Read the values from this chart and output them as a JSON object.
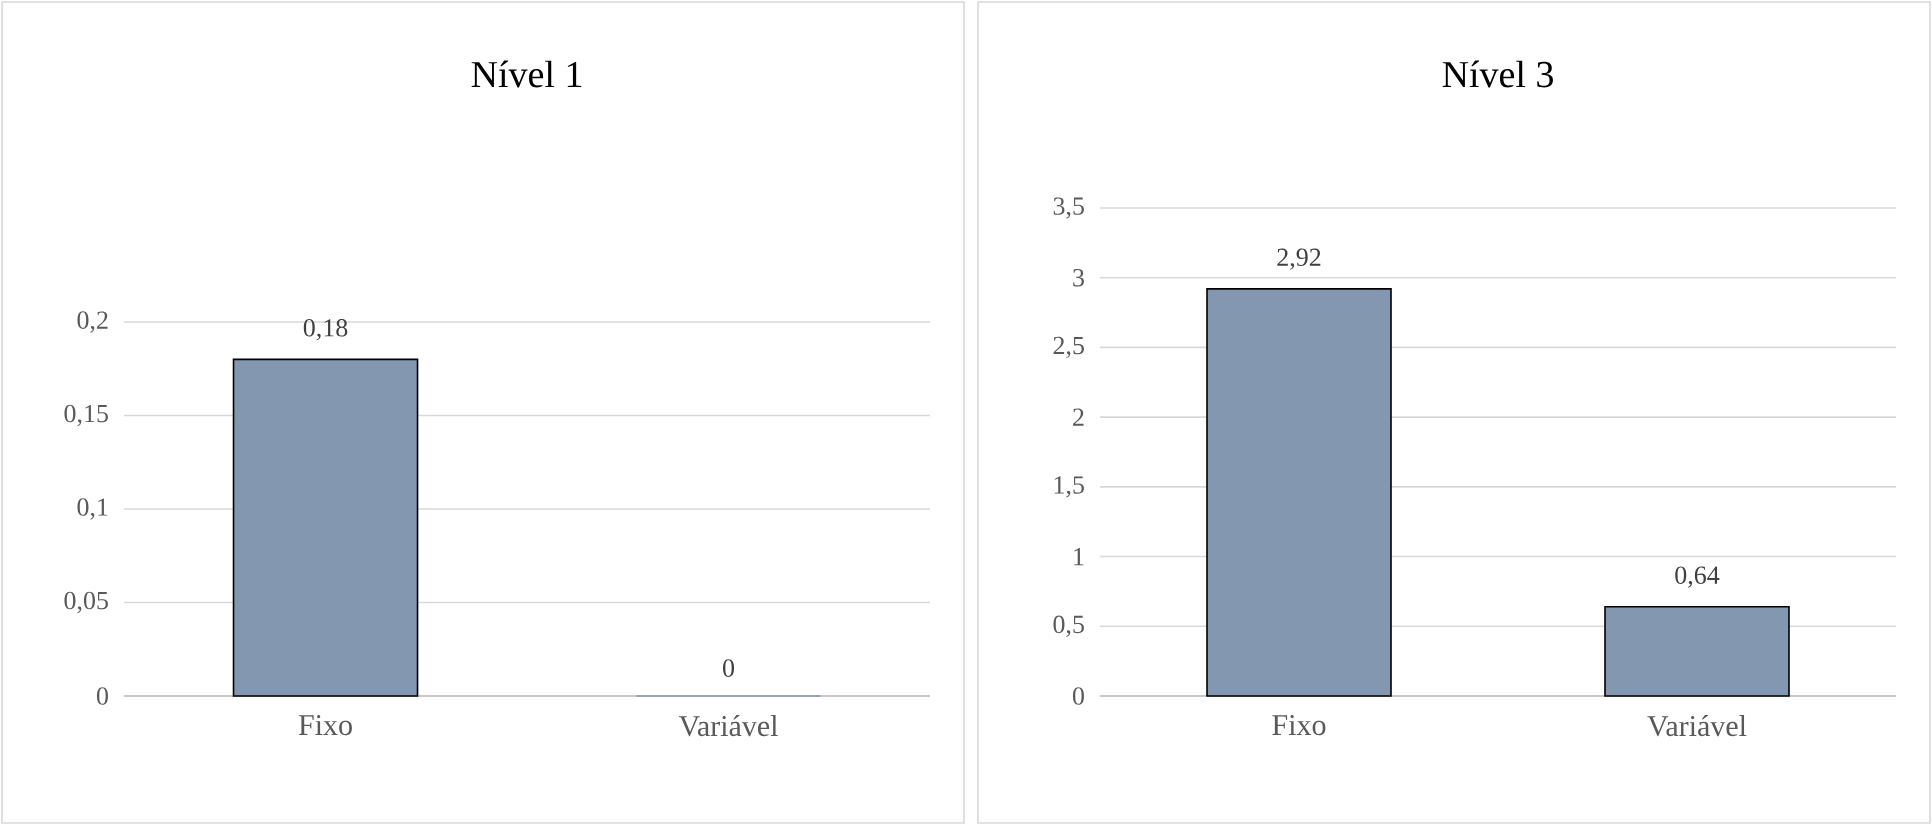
{
  "chart_data": [
    {
      "type": "bar",
      "title": "Nível 1",
      "categories": [
        "Fixo",
        "Variável"
      ],
      "values": [
        0.18,
        0
      ],
      "value_labels": [
        "0,18",
        "0"
      ],
      "color": "#8497b0",
      "ylim": [
        0,
        0.2
      ],
      "yticks": [
        0,
        {
          "value": 0.05,
          "label": "0,05"
        },
        {
          "value": 0.1,
          "label": "0,1"
        },
        {
          "value": 0.15,
          "label": "0,15"
        },
        {
          "value": 0.2,
          "label": "0,2"
        }
      ],
      "grid": "y"
    },
    {
      "type": "bar",
      "title": "Nível 3",
      "categories": [
        "Fixo",
        "Variável"
      ],
      "values": [
        2.92,
        0.64
      ],
      "value_labels": [
        "2,92",
        "0,64"
      ],
      "color": "#8497b0",
      "ylim": [
        0,
        3.5
      ],
      "yticks": [
        0,
        {
          "value": 0.5,
          "label": "0,5"
        },
        1,
        {
          "value": 1.5,
          "label": "1,5"
        },
        2,
        {
          "value": 2.5,
          "label": "2,5"
        },
        3,
        {
          "value": 3.5,
          "label": "3,5"
        }
      ],
      "grid": "y"
    }
  ]
}
